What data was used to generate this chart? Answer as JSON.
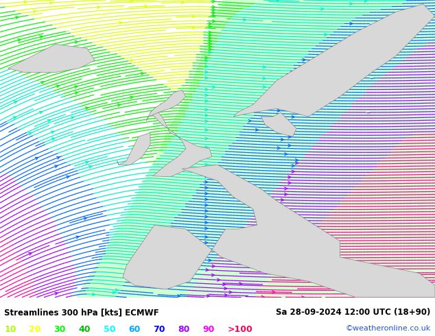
{
  "title_left": "Streamlines 300 hPa [kts] ECMWF",
  "title_right": "Sa 28-09-2024 12:00 UTC (18+90)",
  "credit": "©weatheronline.co.uk",
  "legend_values": [
    "10",
    "20",
    "30",
    "40",
    "50",
    "60",
    "70",
    "80",
    "90",
    ">100"
  ],
  "legend_colors": [
    "#aaff00",
    "#ffff00",
    "#00ff00",
    "#00bb00",
    "#00ffff",
    "#00aaff",
    "#0000ff",
    "#aa00ff",
    "#ff00ff",
    "#ff0055"
  ],
  "speed_levels": [
    0,
    10,
    20,
    30,
    40,
    50,
    60,
    70,
    80,
    90,
    100,
    160
  ],
  "speed_colors": [
    "#e0e0e0",
    "#aaff00",
    "#ffff00",
    "#00ff00",
    "#00bb00",
    "#00ffff",
    "#00aaff",
    "#0000ff",
    "#aa00ff",
    "#ff00ff",
    "#ff0055",
    "#ff0055"
  ],
  "bg_color": "#e0e0e0",
  "jet_bg_color": "#d0ffd0",
  "figsize": [
    6.34,
    4.9
  ],
  "dpi": 100,
  "bottom_bar_height": 0.115
}
